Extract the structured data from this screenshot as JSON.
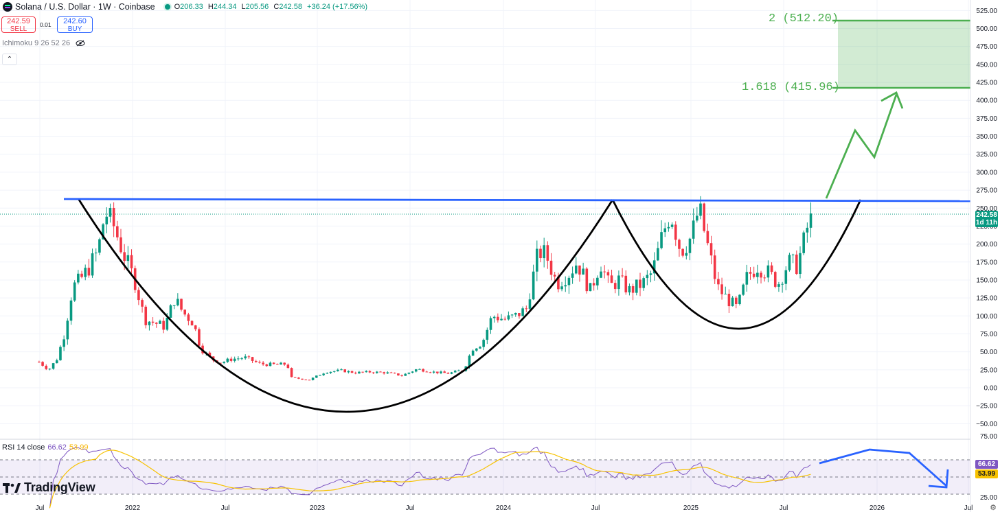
{
  "header": {
    "symbol_title": "Solana / U.S. Dollar · 1W · Coinbase",
    "ohlc": [
      {
        "k": "O",
        "v": "206.33"
      },
      {
        "k": "H",
        "v": "244.34"
      },
      {
        "k": "L",
        "v": "205.56"
      },
      {
        "k": "C",
        "v": "242.58"
      }
    ],
    "change": "+36.24 (+17.56%)",
    "sell_price": "242.59",
    "sell_label": "SELL",
    "spread": "0.01",
    "buy_price": "242.60",
    "buy_label": "BUY",
    "indicator_label": "Ichimoku 9 26 52 26",
    "collapse_glyph": "⌃"
  },
  "rsi_panel": {
    "label": "RSI 14 close",
    "rsi_value": "66.62",
    "ma_value": "53.99",
    "y_ticks": [
      "75.00",
      "25.00"
    ]
  },
  "branding": "TradingView",
  "last_price_tag": {
    "price": "242.58",
    "countdown": "1d 11h"
  },
  "chart_data": {
    "type": "candlestick",
    "title": "Solana / U.S. Dollar · 1W · Coinbase",
    "y_ticks": [
      "525.00",
      "500.00",
      "475.00",
      "450.00",
      "425.00",
      "400.00",
      "375.00",
      "350.00",
      "325.00",
      "300.00",
      "275.00",
      "250.00",
      "225.00",
      "200.00",
      "175.00",
      "150.00",
      "125.00",
      "100.00",
      "75.00",
      "50.00",
      "25.00",
      "0.00",
      "−25.00",
      "−50.00"
    ],
    "ylim": [
      -50,
      525
    ],
    "x_ticks": [
      "Jul",
      "2022",
      "Jul",
      "2023",
      "Jul",
      "2024",
      "Jul",
      "2025",
      "Jul",
      "2026",
      "Jul"
    ],
    "price_path": [
      [
        "2021-07",
        36
      ],
      [
        "2021-07-20",
        25
      ],
      [
        "2021-08-05",
        40
      ],
      [
        "2021-08-20",
        75
      ],
      [
        "2021-09-05",
        140
      ],
      [
        "2021-09-20",
        150
      ],
      [
        "2021-10-05",
        165
      ],
      [
        "2021-10-25",
        190
      ],
      [
        "2021-11-08",
        245
      ],
      [
        "2021-11-25",
        225
      ],
      [
        "2021-12-15",
        185
      ],
      [
        "2022-01-05",
        150
      ],
      [
        "2022-01-25",
        95
      ],
      [
        "2022-02-15",
        90
      ],
      [
        "2022-03-05",
        85
      ],
      [
        "2022-03-25",
        125
      ],
      [
        "2022-04-10",
        105
      ],
      [
        "2022-05-01",
        90
      ],
      [
        "2022-05-15",
        55
      ],
      [
        "2022-06-05",
        40
      ],
      [
        "2022-06-25",
        35
      ],
      [
        "2022-07-15",
        40
      ],
      [
        "2022-08-10",
        42
      ],
      [
        "2022-09-10",
        33
      ],
      [
        "2022-10-10",
        32
      ],
      [
        "2022-11-01",
        33
      ],
      [
        "2022-11-10",
        14
      ],
      [
        "2022-12-15",
        11
      ],
      [
        "2023-01-15",
        22
      ],
      [
        "2023-02-15",
        24
      ],
      [
        "2023-03-15",
        21
      ],
      [
        "2023-04-15",
        22
      ],
      [
        "2023-05-15",
        21
      ],
      [
        "2023-06-15",
        17
      ],
      [
        "2023-07-15",
        26
      ],
      [
        "2023-08-15",
        22
      ],
      [
        "2023-09-15",
        20
      ],
      [
        "2023-10-15",
        25
      ],
      [
        "2023-11-01",
        55
      ],
      [
        "2023-11-20",
        62
      ],
      [
        "2023-12-10",
        100
      ],
      [
        "2024-01-05",
        95
      ],
      [
        "2024-01-25",
        100
      ],
      [
        "2024-02-15",
        110
      ],
      [
        "2024-03-10",
        190
      ],
      [
        "2024-03-25",
        185
      ],
      [
        "2024-04-15",
        145
      ],
      [
        "2024-05-10",
        160
      ],
      [
        "2024-05-25",
        175
      ],
      [
        "2024-06-20",
        135
      ],
      [
        "2024-07-10",
        175
      ],
      [
        "2024-07-28",
        140
      ],
      [
        "2024-08-15",
        150
      ],
      [
        "2024-09-05",
        135
      ],
      [
        "2024-10-01",
        145
      ],
      [
        "2024-10-20",
        160
      ],
      [
        "2024-11-10",
        215
      ],
      [
        "2024-11-25",
        245
      ],
      [
        "2024-12-15",
        190
      ],
      [
        "2025-01-05",
        210
      ],
      [
        "2025-01-20",
        250
      ],
      [
        "2025-02-05",
        200
      ],
      [
        "2025-02-25",
        140
      ],
      [
        "2025-03-15",
        125
      ],
      [
        "2025-04-05",
        110
      ],
      [
        "2025-04-25",
        155
      ],
      [
        "2025-05-15",
        170
      ],
      [
        "2025-06-05",
        160
      ],
      [
        "2025-06-25",
        145
      ],
      [
        "2025-07-15",
        175
      ],
      [
        "2025-08-01",
        170
      ],
      [
        "2025-08-15",
        205
      ],
      [
        "2025-08-28",
        242.58
      ]
    ],
    "annotations": {
      "fib_levels": [
        {
          "label": "2 (512.20)",
          "value": 512.2
        },
        {
          "label": "1.618 (415.96)",
          "value": 415.96
        }
      ],
      "neckline_price": 260,
      "patterns": [
        "cup",
        "handle",
        "projection arrow"
      ]
    },
    "grid": true
  },
  "colors": {
    "up": "#089981",
    "down": "#f23645",
    "cup": "#000000",
    "neckline": "#2962ff",
    "target": "#4caf50",
    "rsi": "#7e57c2",
    "rsi_ma": "#f7c200"
  }
}
